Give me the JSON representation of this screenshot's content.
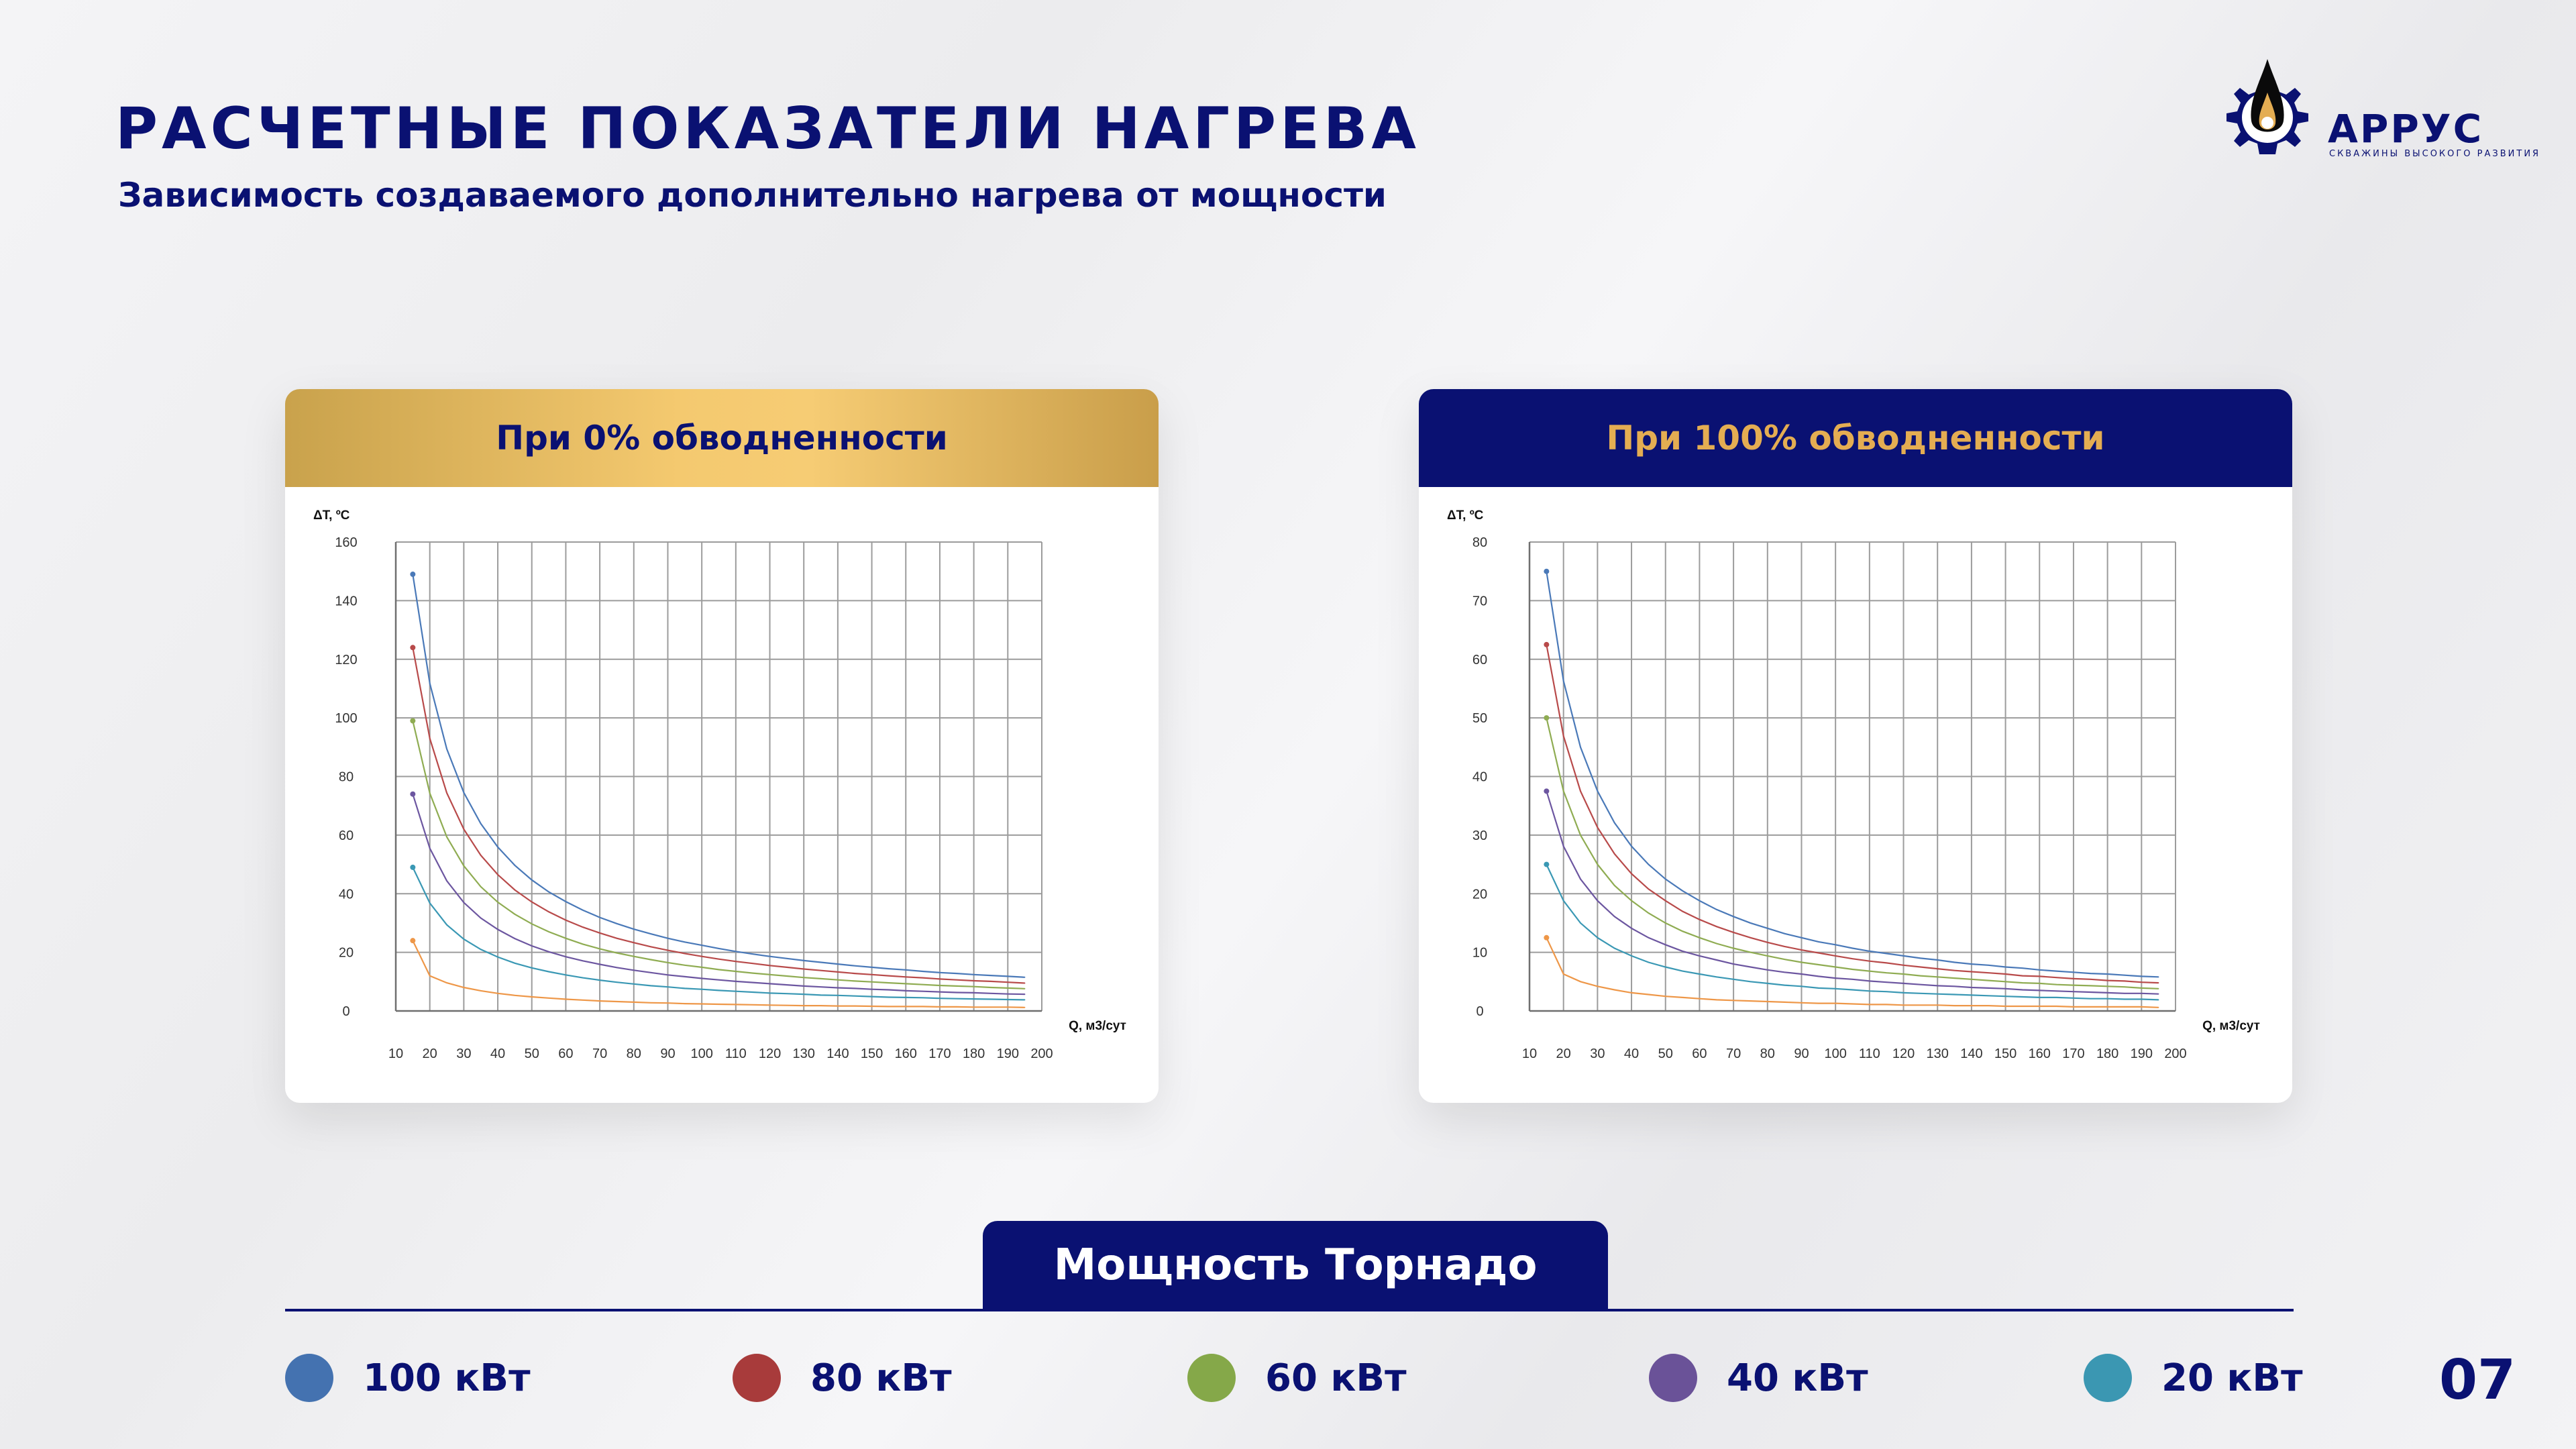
{
  "header": {
    "title": "РАСЧЕТНЫЕ ПОКАЗАТЕЛИ НАГРЕВА",
    "subtitle": "Зависимость создаваемого дополнительно нагрева от мощности"
  },
  "logo": {
    "name": "АРРУС",
    "tagline": "СКВАЖИНЫ ВЫСОКОГО РАЗВИТИЯ"
  },
  "colors": {
    "navy": "#0a1172",
    "gold": "#e4ad52",
    "grid": "#9c9c9c",
    "axis": "#6f6f6f"
  },
  "chart_data": [
    {
      "type": "line",
      "title": "При 0% обводненности",
      "ylabel": "ΔT, ºC",
      "xlabel": "Q, м3/сут",
      "ylim": [
        0,
        160
      ],
      "yticks": [
        0,
        20,
        40,
        60,
        80,
        100,
        120,
        140,
        160
      ],
      "xlim": [
        10,
        200
      ],
      "xticks": [
        10,
        20,
        30,
        40,
        50,
        60,
        70,
        80,
        90,
        100,
        110,
        120,
        130,
        140,
        150,
        160,
        170,
        180,
        190,
        200
      ],
      "grid": true,
      "x": [
        15,
        20,
        25,
        30,
        35,
        40,
        45,
        50,
        55,
        60,
        65,
        70,
        75,
        80,
        85,
        90,
        95,
        100,
        105,
        110,
        115,
        120,
        125,
        130,
        135,
        140,
        145,
        150,
        155,
        160,
        165,
        170,
        175,
        180,
        185,
        190,
        195
      ],
      "series": [
        {
          "name": "100 кВт",
          "color": "#4a79b8",
          "values": [
            149.0,
            111.8,
            89.4,
            74.5,
            63.9,
            55.9,
            49.7,
            44.7,
            40.6,
            37.3,
            34.4,
            31.9,
            29.8,
            27.9,
            26.3,
            24.8,
            23.5,
            22.4,
            21.3,
            20.3,
            19.4,
            18.6,
            17.9,
            17.2,
            16.6,
            16.0,
            15.4,
            14.9,
            14.4,
            14.0,
            13.5,
            13.1,
            12.8,
            12.4,
            12.1,
            11.8,
            11.5
          ]
        },
        {
          "name": "80 кВт",
          "color": "#b84a4a",
          "values": [
            124.0,
            93.0,
            74.4,
            62.0,
            53.1,
            46.5,
            41.3,
            37.2,
            33.8,
            31.0,
            28.6,
            26.6,
            24.8,
            23.3,
            21.9,
            20.7,
            19.6,
            18.6,
            17.7,
            16.9,
            16.2,
            15.5,
            14.9,
            14.3,
            13.8,
            13.3,
            12.8,
            12.4,
            12.0,
            11.6,
            11.3,
            10.9,
            10.6,
            10.3,
            10.1,
            9.8,
            9.5
          ]
        },
        {
          "name": "60 кВт",
          "color": "#8fac52",
          "values": [
            99.0,
            74.3,
            59.4,
            49.5,
            42.4,
            37.1,
            33.0,
            29.7,
            27.0,
            24.8,
            22.8,
            21.2,
            19.8,
            18.6,
            17.5,
            16.5,
            15.6,
            14.9,
            14.1,
            13.5,
            12.9,
            12.4,
            11.9,
            11.4,
            11.0,
            10.6,
            10.2,
            9.9,
            9.6,
            9.3,
            9.0,
            8.7,
            8.5,
            8.3,
            8.0,
            7.8,
            7.6
          ]
        },
        {
          "name": "40 кВт",
          "color": "#6c56a0",
          "values": [
            74.0,
            55.5,
            44.4,
            37.0,
            31.7,
            27.8,
            24.7,
            22.2,
            20.2,
            18.5,
            17.1,
            15.9,
            14.8,
            13.9,
            13.1,
            12.3,
            11.7,
            11.1,
            10.6,
            10.1,
            9.7,
            9.3,
            8.9,
            8.5,
            8.2,
            7.9,
            7.7,
            7.4,
            7.2,
            6.9,
            6.7,
            6.5,
            6.3,
            6.2,
            6.0,
            5.8,
            5.7
          ]
        },
        {
          "name": "20 кВт",
          "color": "#3a98b4",
          "values": [
            49.0,
            36.8,
            29.4,
            24.5,
            21.0,
            18.4,
            16.3,
            14.7,
            13.4,
            12.3,
            11.3,
            10.5,
            9.8,
            9.2,
            8.6,
            8.2,
            7.7,
            7.4,
            7.0,
            6.7,
            6.4,
            6.1,
            5.9,
            5.7,
            5.4,
            5.3,
            5.1,
            4.9,
            4.7,
            4.6,
            4.5,
            4.3,
            4.2,
            4.1,
            4.0,
            3.9,
            3.8
          ]
        },
        {
          "name": "",
          "color": "#ee9748",
          "values": [
            24.0,
            12.0,
            9.6,
            8.0,
            6.9,
            6.0,
            5.3,
            4.8,
            4.4,
            4.0,
            3.7,
            3.4,
            3.2,
            3.0,
            2.8,
            2.7,
            2.5,
            2.4,
            2.3,
            2.2,
            2.1,
            2.0,
            1.9,
            1.8,
            1.8,
            1.7,
            1.7,
            1.6,
            1.5,
            1.5,
            1.5,
            1.4,
            1.4,
            1.3,
            1.3,
            1.3,
            1.2
          ]
        }
      ]
    },
    {
      "type": "line",
      "title": "При 100% обводненности",
      "ylabel": "ΔT, ºC",
      "xlabel": "Q, м3/сут",
      "ylim": [
        0,
        80
      ],
      "yticks": [
        0,
        10,
        20,
        30,
        40,
        50,
        60,
        70,
        80
      ],
      "xlim": [
        10,
        200
      ],
      "xticks": [
        10,
        20,
        30,
        40,
        50,
        60,
        70,
        80,
        90,
        100,
        110,
        120,
        130,
        140,
        150,
        160,
        170,
        180,
        190,
        200
      ],
      "grid": true,
      "x": [
        15,
        20,
        25,
        30,
        35,
        40,
        45,
        50,
        55,
        60,
        65,
        70,
        75,
        80,
        85,
        90,
        95,
        100,
        105,
        110,
        115,
        120,
        125,
        130,
        135,
        140,
        145,
        150,
        155,
        160,
        165,
        170,
        175,
        180,
        185,
        190,
        195
      ],
      "series": [
        {
          "name": "100 кВт",
          "color": "#4a79b8",
          "values": [
            75.0,
            56.3,
            45.0,
            37.5,
            32.1,
            28.1,
            25.0,
            22.5,
            20.5,
            18.8,
            17.3,
            16.1,
            15.0,
            14.1,
            13.2,
            12.5,
            11.8,
            11.3,
            10.7,
            10.2,
            9.8,
            9.4,
            9.0,
            8.7,
            8.3,
            8.0,
            7.8,
            7.5,
            7.3,
            7.0,
            6.8,
            6.6,
            6.4,
            6.3,
            6.1,
            5.9,
            5.8
          ]
        },
        {
          "name": "80 кВт",
          "color": "#b84a4a",
          "values": [
            62.5,
            46.9,
            37.5,
            31.3,
            26.8,
            23.4,
            20.8,
            18.8,
            17.0,
            15.6,
            14.4,
            13.4,
            12.5,
            11.7,
            11.0,
            10.4,
            9.9,
            9.4,
            8.9,
            8.5,
            8.2,
            7.8,
            7.5,
            7.2,
            6.9,
            6.7,
            6.5,
            6.3,
            6.0,
            5.9,
            5.7,
            5.5,
            5.4,
            5.2,
            5.1,
            4.9,
            4.8
          ]
        },
        {
          "name": "60 кВт",
          "color": "#8fac52",
          "values": [
            50.0,
            37.5,
            30.0,
            25.0,
            21.4,
            18.8,
            16.7,
            15.0,
            13.6,
            12.5,
            11.5,
            10.7,
            10.0,
            9.4,
            8.8,
            8.3,
            7.9,
            7.5,
            7.1,
            6.8,
            6.5,
            6.3,
            6.0,
            5.8,
            5.6,
            5.4,
            5.2,
            5.0,
            4.8,
            4.7,
            4.5,
            4.4,
            4.3,
            4.2,
            4.1,
            3.9,
            3.8
          ]
        },
        {
          "name": "40 кВт",
          "color": "#6c56a0",
          "values": [
            37.5,
            28.1,
            22.5,
            18.8,
            16.1,
            14.1,
            12.5,
            11.3,
            10.2,
            9.4,
            8.7,
            8.0,
            7.5,
            7.0,
            6.6,
            6.3,
            5.9,
            5.6,
            5.4,
            5.1,
            4.9,
            4.7,
            4.5,
            4.3,
            4.2,
            4.0,
            3.9,
            3.8,
            3.6,
            3.5,
            3.4,
            3.3,
            3.2,
            3.1,
            3.0,
            3.0,
            2.9
          ]
        },
        {
          "name": "20 кВт",
          "color": "#3a98b4",
          "values": [
            25.0,
            18.8,
            15.0,
            12.5,
            10.7,
            9.4,
            8.3,
            7.5,
            6.8,
            6.3,
            5.8,
            5.4,
            5.0,
            4.7,
            4.4,
            4.2,
            3.9,
            3.8,
            3.6,
            3.4,
            3.3,
            3.1,
            3.0,
            2.9,
            2.8,
            2.7,
            2.6,
            2.5,
            2.4,
            2.3,
            2.3,
            2.2,
            2.1,
            2.1,
            2.0,
            2.0,
            1.9
          ]
        },
        {
          "name": "",
          "color": "#ee9748",
          "values": [
            12.5,
            6.3,
            5.0,
            4.2,
            3.6,
            3.1,
            2.8,
            2.5,
            2.3,
            2.1,
            1.9,
            1.8,
            1.7,
            1.6,
            1.5,
            1.4,
            1.3,
            1.3,
            1.2,
            1.1,
            1.1,
            1.0,
            1.0,
            1.0,
            0.9,
            0.9,
            0.9,
            0.8,
            0.8,
            0.8,
            0.8,
            0.7,
            0.7,
            0.7,
            0.7,
            0.7,
            0.6
          ]
        }
      ]
    }
  ],
  "legend": {
    "title": "Мощность Торнадо",
    "items": [
      {
        "label": "100 кВт",
        "color": "#4472b0"
      },
      {
        "label": "80 кВт",
        "color": "#a83b3b"
      },
      {
        "label": "60 кВт",
        "color": "#85a849"
      },
      {
        "label": "40 кВт",
        "color": "#6a5298"
      },
      {
        "label": "20 кВт",
        "color": "#3b97b2"
      }
    ]
  },
  "page": {
    "number": "07"
  }
}
